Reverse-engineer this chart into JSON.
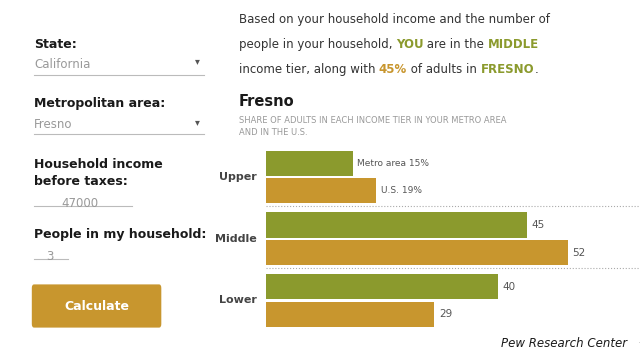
{
  "background_color": "#ffffff",
  "left_panel": {
    "state_label": "State:",
    "state_value": "California",
    "metro_label": "Metropolitan area:",
    "metro_value": "Fresno",
    "income_label": "Household income\nbefore taxes:",
    "income_value": "47000",
    "people_label": "People in my household:",
    "people_value": "3",
    "button_text": "Calculate",
    "button_color": "#c8962e"
  },
  "right_panel": {
    "line1": "Based on your household income and the number of",
    "line2_parts": [
      {
        "text": "people in your household, ",
        "color": "#333333",
        "bold": false
      },
      {
        "text": "YOU",
        "color": "#8b9a2d",
        "bold": true
      },
      {
        "text": " are in the ",
        "color": "#333333",
        "bold": false
      },
      {
        "text": "MIDDLE",
        "color": "#8b9a2d",
        "bold": true
      }
    ],
    "line3_parts": [
      {
        "text": "income tier, along with ",
        "color": "#333333",
        "bold": false
      },
      {
        "text": "45%",
        "color": "#c8962e",
        "bold": true
      },
      {
        "text": " of adults in ",
        "color": "#333333",
        "bold": false
      },
      {
        "text": "FRESNO",
        "color": "#8b9a2d",
        "bold": true
      },
      {
        "text": ".",
        "color": "#333333",
        "bold": false
      }
    ],
    "chart_title": "Fresno",
    "chart_subtitle_line1": "SHARE OF ADULTS IN EACH INCOME TIER IN YOUR METRO AREA",
    "chart_subtitle_line2": "AND IN THE U.S.",
    "categories": [
      "Upper",
      "Middle",
      "Lower"
    ],
    "metro_values": [
      15,
      45,
      40
    ],
    "us_values": [
      19,
      52,
      29
    ],
    "metro_color": "#8b9a2d",
    "us_color": "#c8962e",
    "metro_label_text": "Metro area 15%",
    "us_label_text": "U.S. 19%",
    "max_value": 60,
    "pew_text": "Pew Research Center"
  }
}
